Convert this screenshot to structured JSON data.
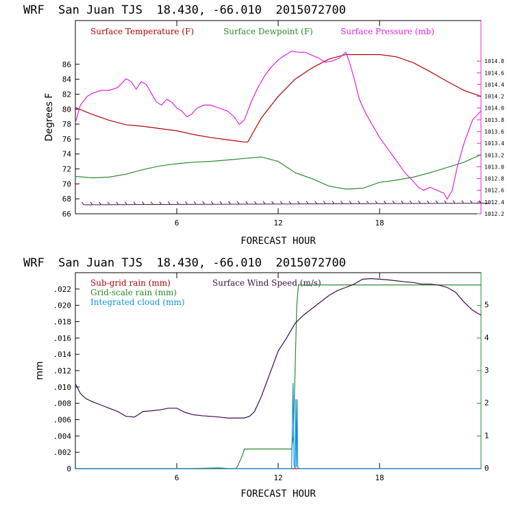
{
  "colors": {
    "temperature": "#b00000",
    "dewpoint": "#2a8a2a",
    "pressure": "#e020e0",
    "subgrid_rain": "#b00000",
    "gridscale_rain": "#2a8a2a",
    "cloud": "#1090e0",
    "wind": "#3a0a4a",
    "wind_barbs": "#3a0a4a"
  },
  "chart_data": [
    {
      "type": "line",
      "title": "WRF  San Juan TJS  18.430, -66.010  2015072700",
      "xlabel": "FORECAST HOUR",
      "ylabel": "Degrees F",
      "xlim": [
        0,
        24
      ],
      "ylim": [
        66,
        88
      ],
      "y2lim": [
        1012.2,
        1015.0
      ],
      "x_ticks": [
        "6",
        "12",
        "18"
      ],
      "y_ticks": [
        "66",
        "68",
        "70",
        "72",
        "74",
        "76",
        "78",
        "80",
        "82",
        "84",
        "86"
      ],
      "y2_ticks": [
        "1012.2",
        "1012.4",
        "1012.6",
        "1012.8",
        "1013.0",
        "1013.2",
        "1013.4",
        "1013.6",
        "1013.8",
        "1014.0",
        "1014.2",
        "1014.4",
        "1014.6",
        "1014.8"
      ],
      "series": [
        {
          "name": "Surface Temperature (F)",
          "axis": "left",
          "x": [
            0,
            1,
            2,
            3,
            4,
            5,
            6,
            7,
            8,
            9,
            10,
            10.2,
            11,
            12,
            13,
            14,
            15,
            16,
            17,
            18,
            19,
            20,
            21,
            22,
            23,
            24
          ],
          "values": [
            80.2,
            79.3,
            78.5,
            77.9,
            77.7,
            77.4,
            77.1,
            76.6,
            76.2,
            75.9,
            75.6,
            75.6,
            78.8,
            81.7,
            84.0,
            85.5,
            86.7,
            87.3,
            87.3,
            87.3,
            87.0,
            86.2,
            85.0,
            83.7,
            82.5,
            81.7
          ]
        },
        {
          "name": "Surface Dewpoint (F)",
          "axis": "left",
          "x": [
            0,
            1,
            2,
            3,
            4,
            5,
            6,
            7,
            8,
            9,
            10,
            11,
            12,
            13,
            14,
            15,
            16,
            17,
            18,
            19,
            20,
            21,
            22,
            23,
            24
          ],
          "values": [
            71.0,
            70.8,
            70.9,
            71.3,
            71.9,
            72.4,
            72.7,
            72.9,
            73.0,
            73.2,
            73.4,
            73.6,
            73.0,
            71.5,
            70.7,
            69.7,
            69.3,
            69.4,
            70.2,
            70.5,
            70.9,
            71.5,
            72.2,
            72.9,
            73.9
          ]
        },
        {
          "name": "Surface Pressure (mb)",
          "axis": "right",
          "x": [
            0,
            0.3,
            0.7,
            1.0,
            1.5,
            2.0,
            2.5,
            3.0,
            3.3,
            3.6,
            3.9,
            4.2,
            4.5,
            4.8,
            5.1,
            5.4,
            5.7,
            6.0,
            6.3,
            6.6,
            6.9,
            7.2,
            7.6,
            8.0,
            8.5,
            9.0,
            9.4,
            9.7,
            10.0,
            10.4,
            10.8,
            11.2,
            11.6,
            12.0,
            12.4,
            12.8,
            13.2,
            13.6,
            14.0,
            14.4,
            14.8,
            15.2,
            15.6,
            16.0,
            16.2,
            16.5,
            16.8,
            17.2,
            17.6,
            18.0,
            18.5,
            19.0,
            19.5,
            20.0,
            20.3,
            20.6,
            21.0,
            21.4,
            21.8,
            22.0,
            22.3,
            22.6,
            23.0,
            23.5,
            24.0
          ],
          "values": [
            1013.75,
            1014.05,
            1014.2,
            1014.25,
            1014.3,
            1014.3,
            1014.35,
            1014.5,
            1014.45,
            1014.32,
            1014.45,
            1014.4,
            1014.25,
            1014.1,
            1014.05,
            1014.15,
            1014.1,
            1014.0,
            1013.95,
            1013.85,
            1013.9,
            1014.0,
            1014.05,
            1014.05,
            1014.0,
            1013.95,
            1013.85,
            1013.72,
            1013.8,
            1014.1,
            1014.35,
            1014.55,
            1014.7,
            1014.82,
            1014.9,
            1014.97,
            1014.95,
            1014.95,
            1014.9,
            1014.85,
            1014.78,
            1014.8,
            1014.85,
            1014.95,
            1014.8,
            1014.5,
            1014.15,
            1013.9,
            1013.7,
            1013.5,
            1013.3,
            1013.1,
            1012.9,
            1012.75,
            1012.65,
            1012.6,
            1012.65,
            1012.6,
            1012.55,
            1012.45,
            1012.6,
            1013.0,
            1013.4,
            1013.8,
            1013.95
          ]
        }
      ],
      "wind_barbs": {
        "x_start": 0.5,
        "x_end": 24,
        "count": 47,
        "level": 67.2
      }
    },
    {
      "type": "line",
      "title": "WRF  San Juan TJS  18.430, -66.010  2015072700",
      "xlabel": "FORECAST HOUR",
      "ylabel": "mm",
      "xlim": [
        0,
        24
      ],
      "ylim": [
        0,
        0.024
      ],
      "y2lim": [
        0,
        6
      ],
      "x_ticks": [
        "6",
        "12",
        "18"
      ],
      "y_ticks": [
        "0",
        ".002",
        ".004",
        ".006",
        ".008",
        ".010",
        ".012",
        ".014",
        ".016",
        ".018",
        ".020",
        ".022"
      ],
      "y2_ticks": [
        "0",
        "1",
        "2",
        "3",
        "4",
        "5"
      ],
      "series": [
        {
          "name": "Sub-grid rain (mm)",
          "axis": "left",
          "x": [
            0,
            24
          ],
          "values": [
            0,
            0
          ]
        },
        {
          "name": "Grid-scale rain (mm)",
          "axis": "left",
          "x": [
            0,
            9.5,
            9.6,
            9.75,
            9.9,
            10.0,
            12.8,
            12.9,
            13.0,
            13.1,
            13.2,
            24
          ],
          "values": [
            0,
            0,
            0.0003,
            0.001,
            0.0017,
            0.0024,
            0.0024,
            0.004,
            0.012,
            0.02,
            0.0225,
            0.0225
          ]
        },
        {
          "name": "Integrated cloud (mm)",
          "axis": "left",
          "x": [
            0,
            6.5,
            8.5,
            9.2,
            12.7,
            12.8,
            12.88,
            12.94,
            13.0,
            13.04,
            13.08,
            13.12,
            13.16,
            13.22,
            13.3,
            24
          ],
          "values": [
            0,
            0,
            0.0001,
            0,
            0,
            0,
            0.0105,
            0.0005,
            0,
            0.0085,
            0.0002,
            0.0085,
            0.0002,
            0,
            0,
            0
          ]
        },
        {
          "name": "Surface Wind Speed (m/s)",
          "axis": "right",
          "x": [
            0,
            0.3,
            0.6,
            1.0,
            1.5,
            2.0,
            2.5,
            3.0,
            3.5,
            4.0,
            4.5,
            5.0,
            5.5,
            6.0,
            6.5,
            7.0,
            7.5,
            8.0,
            8.5,
            9.0,
            9.5,
            10.0,
            10.3,
            10.6,
            11.0,
            11.5,
            12.0,
            12.5,
            13.0,
            13.5,
            14.0,
            14.5,
            15.0,
            15.5,
            16.0,
            16.5,
            17.0,
            17.5,
            18.0,
            18.5,
            19.0,
            19.5,
            20.0,
            20.5,
            21.0,
            21.5,
            22.0,
            22.5,
            23.0,
            23.5,
            24.0
          ],
          "values": [
            2.6,
            2.3,
            2.15,
            2.05,
            1.95,
            1.85,
            1.75,
            1.6,
            1.58,
            1.75,
            1.77,
            1.8,
            1.85,
            1.85,
            1.72,
            1.65,
            1.62,
            1.6,
            1.58,
            1.55,
            1.55,
            1.55,
            1.6,
            1.75,
            2.2,
            2.9,
            3.6,
            4.0,
            4.45,
            4.7,
            4.9,
            5.1,
            5.3,
            5.45,
            5.55,
            5.65,
            5.8,
            5.82,
            5.8,
            5.78,
            5.75,
            5.72,
            5.7,
            5.65,
            5.65,
            5.62,
            5.55,
            5.4,
            5.1,
            4.85,
            4.7
          ]
        }
      ]
    }
  ]
}
